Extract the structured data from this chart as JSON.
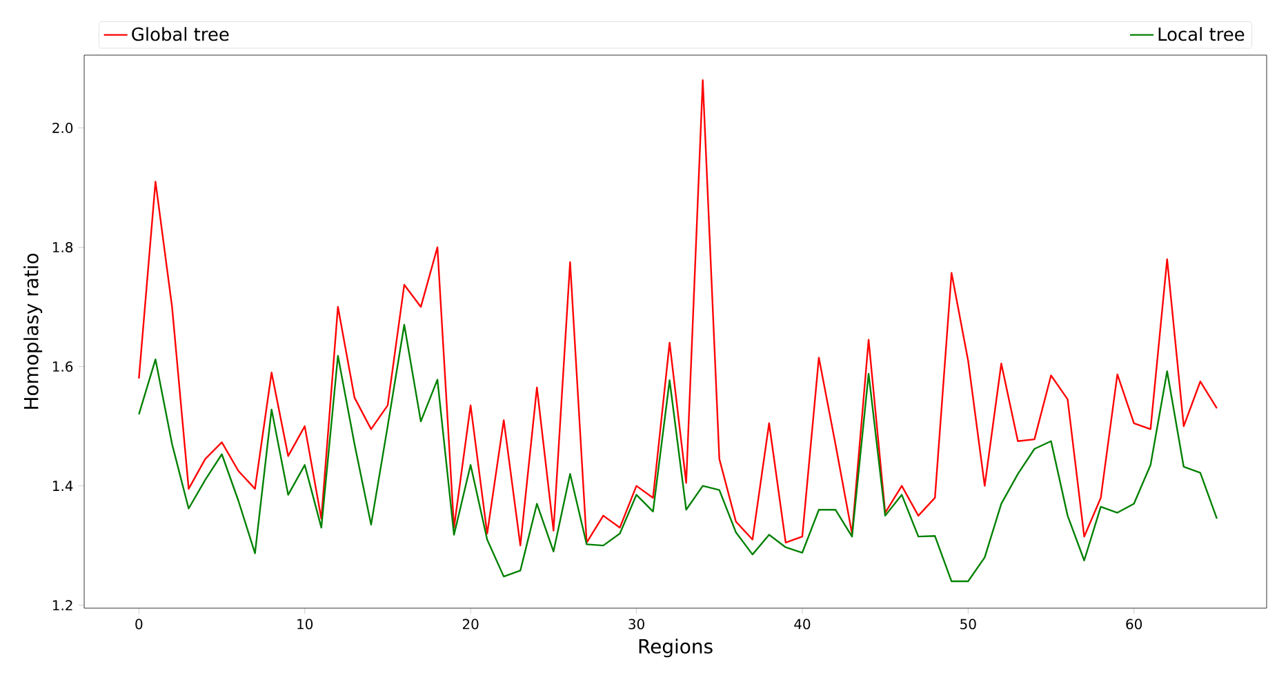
{
  "chart_data": {
    "type": "line",
    "xlabel": "Regions",
    "ylabel": "Homoplasy ratio",
    "x": [
      0,
      1,
      2,
      3,
      4,
      5,
      6,
      7,
      8,
      9,
      10,
      11,
      12,
      13,
      14,
      15,
      16,
      17,
      18,
      19,
      20,
      21,
      22,
      23,
      24,
      25,
      26,
      27,
      28,
      29,
      30,
      31,
      32,
      33,
      34,
      35,
      36,
      37,
      38,
      39,
      40,
      41,
      42,
      43,
      44,
      45,
      46,
      47,
      48,
      49,
      50,
      51,
      52,
      53,
      54,
      55,
      56,
      57,
      58,
      59,
      60,
      61,
      62,
      63,
      64,
      65
    ],
    "series": [
      {
        "name": "Global tree",
        "color": "#ff0000",
        "values": [
          1.58,
          1.91,
          1.7,
          1.395,
          1.445,
          1.473,
          1.425,
          1.395,
          1.59,
          1.45,
          1.5,
          1.345,
          1.7,
          1.548,
          1.495,
          1.535,
          1.737,
          1.7,
          1.8,
          1.33,
          1.535,
          1.32,
          1.51,
          1.3,
          1.565,
          1.325,
          1.775,
          1.305,
          1.35,
          1.33,
          1.4,
          1.38,
          1.64,
          1.405,
          2.08,
          1.445,
          1.34,
          1.31,
          1.505,
          1.305,
          1.315,
          1.615,
          1.47,
          1.32,
          1.645,
          1.355,
          1.4,
          1.35,
          1.38,
          1.757,
          1.61,
          1.4,
          1.605,
          1.475,
          1.478,
          1.585,
          1.545,
          1.315,
          1.38,
          1.587,
          1.505,
          1.495,
          1.78,
          1.5,
          1.575,
          1.53
        ]
      },
      {
        "name": "Local tree",
        "color": "#008000",
        "values": [
          1.52,
          1.612,
          1.47,
          1.362,
          1.41,
          1.453,
          1.375,
          1.287,
          1.528,
          1.385,
          1.435,
          1.33,
          1.618,
          1.47,
          1.335,
          1.5,
          1.67,
          1.508,
          1.578,
          1.318,
          1.435,
          1.31,
          1.248,
          1.258,
          1.37,
          1.29,
          1.42,
          1.302,
          1.3,
          1.32,
          1.385,
          1.357,
          1.577,
          1.36,
          1.4,
          1.393,
          1.322,
          1.285,
          1.318,
          1.297,
          1.288,
          1.36,
          1.36,
          1.315,
          1.588,
          1.35,
          1.385,
          1.315,
          1.316,
          1.24,
          1.24,
          1.28,
          1.37,
          1.42,
          1.462,
          1.475,
          1.35,
          1.275,
          1.365,
          1.355,
          1.37,
          1.435,
          1.592,
          1.432,
          1.422,
          1.345
        ]
      }
    ],
    "xlim": [
      -3.3,
      68.0
    ],
    "ylim": [
      1.195,
      2.122
    ],
    "xticks": [
      0,
      10,
      20,
      30,
      40,
      50,
      60
    ],
    "yticks": [
      1.2,
      1.4,
      1.6,
      1.8,
      {
        "value": 2.0,
        "label": "2.0"
      }
    ],
    "grid": false,
    "legend": "top",
    "marker": "none",
    "line_style": "solid"
  }
}
